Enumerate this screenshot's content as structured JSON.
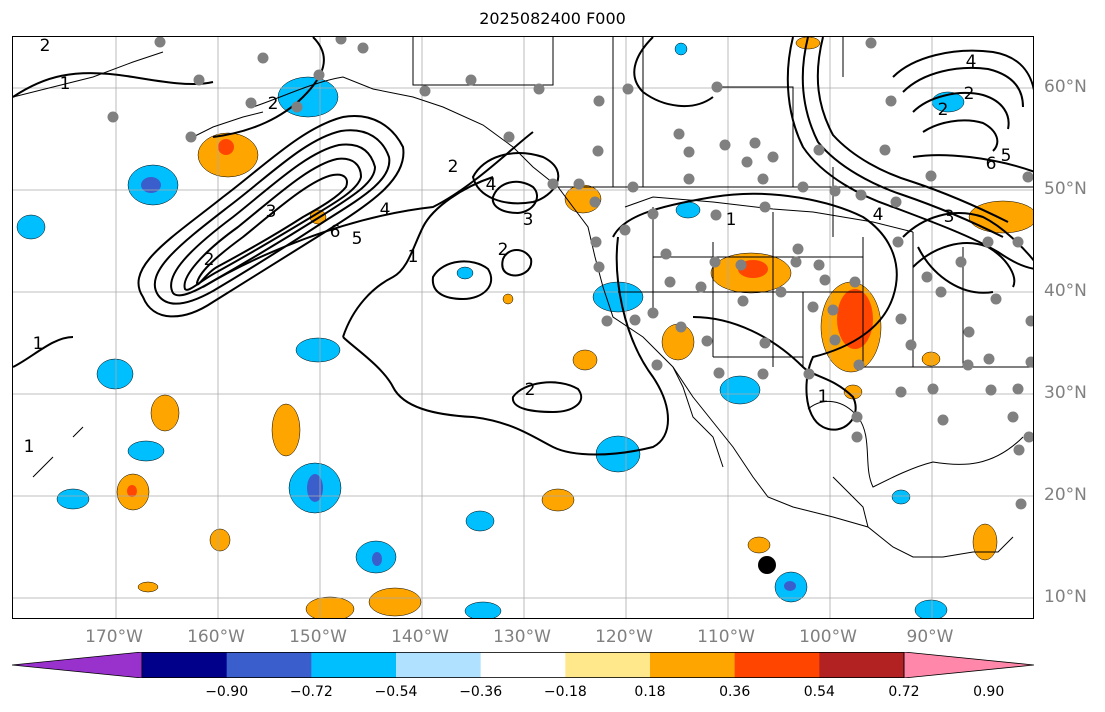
{
  "title": "2025082400 F000",
  "lon_labels": [
    "170°W",
    "160°W",
    "150°W",
    "140°W",
    "130°W",
    "120°W",
    "110°W",
    "100°W",
    "90°W"
  ],
  "lat_labels": [
    "60°N",
    "50°N",
    "40°N",
    "30°N",
    "20°N",
    "10°N"
  ],
  "colorbar": {
    "tick_labels": [
      "−0.90",
      "−0.72",
      "−0.54",
      "−0.36",
      "−0.18",
      "0.18",
      "0.36",
      "0.54",
      "0.72",
      "0.90"
    ],
    "colors": [
      "#9932cc",
      "#00008b",
      "#3a5fcd",
      "#00bfff",
      "#b0e2ff",
      "#ffffff",
      "#ffe88c",
      "#ffa500",
      "#ff4500",
      "#b22222",
      "#ff88aa"
    ]
  },
  "contour_labels": [
    "2",
    "1",
    "4",
    "3",
    "2",
    "1",
    "6",
    "5",
    "2",
    "1",
    "2",
    "4",
    "3",
    "2",
    "1",
    "2",
    "2",
    "1",
    "4",
    "6",
    "5",
    "4",
    "3",
    "2",
    "1"
  ],
  "map_symbols": {
    "station_marker": "gray-dot",
    "storm_marker": "black-dot"
  }
}
